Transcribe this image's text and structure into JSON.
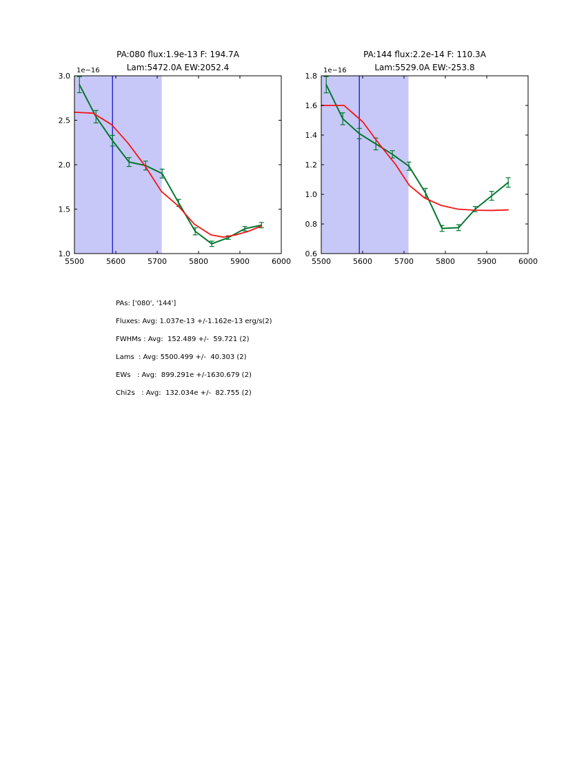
{
  "info": {
    "lines": [
      "PAs: ['080', '144']",
      "Fluxes: Avg: 1.037e-13 +/-1.162e-13 erg/s(2)",
      "FWHMs : Avg:  152.489 +/-  59.721 (2)",
      "Lams  : Avg: 5500.499 +/-  40.303 (2)",
      "EWs   : Avg:  899.291e +/-1630.679 (2)",
      "Chi2s   : Avg:  132.034e +/-  82.755 (2)"
    ]
  },
  "style": {
    "band_color": "#c8c8f8",
    "vline_color": "#1212cf",
    "data_color": "#00762e",
    "fit_color": "#f71212",
    "axis_color": "#000000"
  },
  "chart_data": [
    {
      "type": "line",
      "title_line1": "PA:080 flux:1.9e-13 F: 194.7A",
      "title_line2": "Lam:5472.0A EW:2052.4",
      "offset_label": "1e−16",
      "xlim": [
        5500,
        6000
      ],
      "ylim": [
        1.0,
        3.0
      ],
      "xticks": [
        5500,
        5600,
        5700,
        5800,
        5900,
        6000
      ],
      "xtick_labels": [
        "5500",
        "5600",
        "5700",
        "5800",
        "5900",
        "6000"
      ],
      "yticks": [
        1.0,
        1.5,
        2.0,
        2.5,
        3.0
      ],
      "ytick_labels": [
        "1.0",
        "1.5",
        "2.0",
        "2.5",
        "3.0"
      ],
      "band": [
        5500,
        5711
      ],
      "vline": 5592,
      "grid": false,
      "legend": null,
      "series": [
        {
          "name": "spectrum-data",
          "role": "data",
          "x": [
            5512,
            5552,
            5592,
            5632,
            5672,
            5712,
            5752,
            5792,
            5832,
            5872,
            5912,
            5952
          ],
          "y": [
            2.9,
            2.54,
            2.27,
            2.03,
            1.99,
            1.9,
            1.57,
            1.25,
            1.11,
            1.18,
            1.28,
            1.32
          ],
          "yerr": [
            0.09,
            0.07,
            0.06,
            0.05,
            0.05,
            0.05,
            0.04,
            0.04,
            0.03,
            0.02,
            0.025,
            0.03
          ]
        },
        {
          "name": "model-fit",
          "role": "fit",
          "x": [
            5500,
            5545,
            5590,
            5630,
            5670,
            5710,
            5750,
            5790,
            5830,
            5860,
            5890,
            5920,
            5952
          ],
          "y": [
            2.59,
            2.58,
            2.45,
            2.24,
            1.99,
            1.7,
            1.54,
            1.33,
            1.21,
            1.185,
            1.21,
            1.25,
            1.31
          ]
        }
      ]
    },
    {
      "type": "line",
      "title_line1": "PA:144 flux:2.2e-14 F: 110.3A",
      "title_line2": "Lam:5529.0A EW:-253.8",
      "offset_label": "1e−16",
      "xlim": [
        5500,
        6000
      ],
      "ylim": [
        0.6,
        1.8
      ],
      "xticks": [
        5500,
        5600,
        5700,
        5800,
        5900,
        6000
      ],
      "xtick_labels": [
        "5500",
        "5600",
        "5700",
        "5800",
        "5900",
        "6000"
      ],
      "yticks": [
        0.6,
        0.8,
        1.0,
        1.2,
        1.4,
        1.6,
        1.8
      ],
      "ytick_labels": [
        "0.6",
        "0.8",
        "1.0",
        "1.2",
        "1.4",
        "1.6",
        "1.8"
      ],
      "band": [
        5500,
        5711
      ],
      "vline": 5592,
      "grid": false,
      "legend": null,
      "series": [
        {
          "name": "spectrum-data",
          "role": "data",
          "x": [
            5512,
            5552,
            5592,
            5632,
            5672,
            5712,
            5752,
            5792,
            5832,
            5872,
            5912,
            5952
          ],
          "y": [
            1.74,
            1.51,
            1.41,
            1.34,
            1.27,
            1.19,
            1.01,
            0.77,
            0.775,
            0.9,
            0.99,
            1.08
          ],
          "yerr": [
            0.055,
            0.04,
            0.035,
            0.04,
            0.025,
            0.028,
            0.03,
            0.02,
            0.02,
            0.018,
            0.03,
            0.032
          ]
        },
        {
          "name": "model-fit",
          "role": "fit",
          "x": [
            5500,
            5555,
            5600,
            5640,
            5680,
            5713,
            5750,
            5790,
            5830,
            5870,
            5910,
            5952
          ],
          "y": [
            1.6,
            1.6,
            1.49,
            1.34,
            1.2,
            1.06,
            0.975,
            0.925,
            0.9,
            0.893,
            0.891,
            0.895
          ]
        }
      ]
    }
  ]
}
